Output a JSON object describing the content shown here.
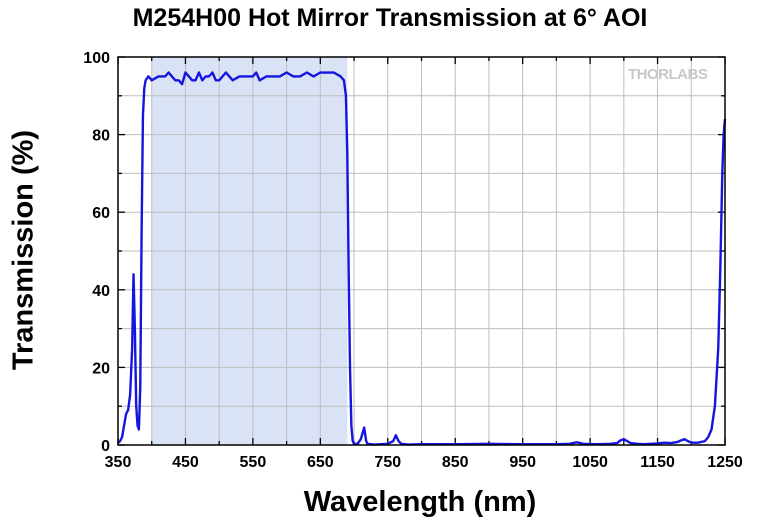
{
  "chart_data": {
    "type": "line",
    "title": "M254H00 Hot Mirror Transmission at 6° AOI",
    "xlabel": "Wavelength (nm)",
    "ylabel": "Transmission (%)",
    "xlim": [
      350,
      1250
    ],
    "ylim": [
      0,
      100
    ],
    "xticks": [
      350,
      450,
      550,
      650,
      750,
      850,
      950,
      1050,
      1150,
      1250
    ],
    "yticks": [
      0,
      20,
      40,
      60,
      80,
      100
    ],
    "x_minor_step": 50,
    "y_minor_step": 10,
    "grid": true,
    "highlight_band": {
      "from": 400,
      "to": 690,
      "color": "#dae3f5"
    },
    "line_color": "#1515e0",
    "watermark": "THORLABS",
    "series": [
      {
        "x": [
          350,
          353,
          356,
          359,
          362,
          365,
          368,
          371,
          373,
          375,
          377,
          379,
          381,
          383,
          385,
          387,
          389,
          391,
          395,
          400,
          410,
          420,
          425,
          430,
          435,
          440,
          445,
          450,
          455,
          460,
          465,
          470,
          475,
          480,
          485,
          490,
          495,
          500,
          510,
          520,
          530,
          540,
          550,
          555,
          560,
          570,
          580,
          590,
          600,
          610,
          620,
          630,
          640,
          650,
          660,
          670,
          680,
          685,
          688,
          690,
          692,
          694,
          696,
          698,
          700,
          703,
          706,
          710,
          715,
          718,
          720,
          725,
          730,
          740,
          750,
          758,
          762,
          766,
          770,
          775,
          780,
          800,
          850,
          900,
          950,
          1000,
          1020,
          1030,
          1040,
          1060,
          1080,
          1090,
          1095,
          1100,
          1105,
          1110,
          1120,
          1130,
          1150,
          1160,
          1170,
          1180,
          1185,
          1190,
          1195,
          1200,
          1210,
          1220,
          1225,
          1230,
          1235,
          1240,
          1243,
          1246,
          1248,
          1250
        ],
        "y": [
          0.5,
          1,
          2,
          5,
          8,
          9,
          13,
          25,
          44,
          30,
          10,
          5,
          4,
          15,
          55,
          85,
          92,
          94,
          95,
          94,
          95,
          95,
          96,
          95,
          94,
          94,
          93,
          96,
          95,
          94,
          94,
          96,
          94,
          95,
          95,
          96,
          94,
          94,
          96,
          94,
          95,
          95,
          95,
          96,
          94,
          95,
          95,
          95,
          96,
          95,
          95,
          96,
          95,
          96,
          96,
          96,
          95,
          94,
          90,
          75,
          45,
          20,
          5,
          1,
          0.3,
          0.2,
          0.5,
          1.5,
          4.5,
          1,
          0.3,
          0.2,
          0.1,
          0.2,
          0.3,
          1,
          2.5,
          1,
          0.3,
          0.2,
          0.1,
          0.2,
          0.2,
          0.3,
          0.2,
          0.2,
          0.3,
          0.7,
          0.3,
          0.2,
          0.3,
          0.5,
          1.2,
          1.5,
          1,
          0.5,
          0.3,
          0.2,
          0.4,
          0.6,
          0.5,
          0.8,
          1.2,
          1.5,
          1,
          0.6,
          0.6,
          1,
          2,
          4,
          10,
          25,
          45,
          70,
          80,
          84
        ]
      }
    ]
  }
}
